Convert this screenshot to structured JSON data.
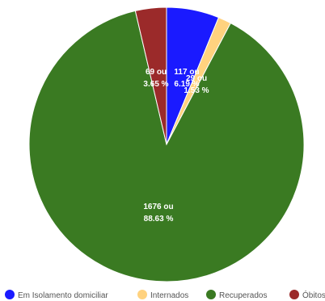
{
  "chart_data": {
    "type": "pie",
    "slices": [
      {
        "name": "Em Isolamento domiciliar",
        "value": 117,
        "percent": "6.19 %",
        "color": "#1a1aff",
        "label_line1": "117 ou",
        "label_line2": "6.19 %"
      },
      {
        "name": "Internados",
        "value": 29,
        "percent": "1.53 %",
        "color": "#ffd27f",
        "label_line1": "29 ou",
        "label_line2": "1.53 %"
      },
      {
        "name": "Recuperados",
        "value": 1676,
        "percent": "88.63 %",
        "color": "#3a7a22",
        "label_line1": "1676 ou",
        "label_line2": "88.63 %"
      },
      {
        "name": "Óbitos",
        "value": 69,
        "percent": "3.65 %",
        "color": "#9b2a2a",
        "label_line1": "69 ou",
        "label_line2": "3.65 %"
      }
    ],
    "legend_position": "bottom"
  }
}
